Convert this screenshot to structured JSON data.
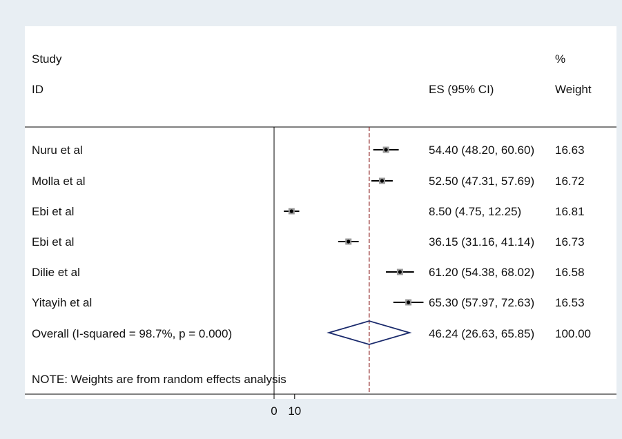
{
  "chart_data": {
    "type": "forest",
    "headers": {
      "study_line1": "Study",
      "study_line2": "ID",
      "es": "ES (95% CI)",
      "weight_line1": "%",
      "weight_line2": "Weight"
    },
    "xaxis": {
      "ticks": [
        0,
        10
      ]
    },
    "reference_line": 46.24,
    "studies": [
      {
        "label": "Nuru et al",
        "es": 54.4,
        "lo": 48.2,
        "hi": 60.6,
        "ci_text": "54.40 (48.20, 60.60)",
        "weight": "16.63"
      },
      {
        "label": "Molla et al",
        "es": 52.5,
        "lo": 47.31,
        "hi": 57.69,
        "ci_text": "52.50 (47.31, 57.69)",
        "weight": "16.72"
      },
      {
        "label": "Ebi et al",
        "es": 8.5,
        "lo": 4.75,
        "hi": 12.25,
        "ci_text": "8.50 (4.75, 12.25)",
        "weight": "16.81"
      },
      {
        "label": "Ebi et al",
        "es": 36.15,
        "lo": 31.16,
        "hi": 41.14,
        "ci_text": "36.15 (31.16, 41.14)",
        "weight": "16.73"
      },
      {
        "label": "Dilie  et al",
        "es": 61.2,
        "lo": 54.38,
        "hi": 68.02,
        "ci_text": "61.20 (54.38, 68.02)",
        "weight": "16.58"
      },
      {
        "label": "Yitayih et al",
        "es": 65.3,
        "lo": 57.97,
        "hi": 72.63,
        "ci_text": "65.30 (57.97, 72.63)",
        "weight": "16.53"
      }
    ],
    "overall": {
      "label": "Overall  (I-squared = 98.7%, p = 0.000)",
      "es": 46.24,
      "lo": 26.63,
      "hi": 65.85,
      "ci_text": "46.24 (26.63, 65.85)",
      "weight": "100.00"
    },
    "note": "NOTE: Weights are from random effects analysis",
    "colors": {
      "background": "#e8eef3",
      "panel": "#ffffff",
      "reference_line": "#8b1a1a",
      "diamond": "#1a2a6c",
      "marker": "#000000"
    }
  }
}
